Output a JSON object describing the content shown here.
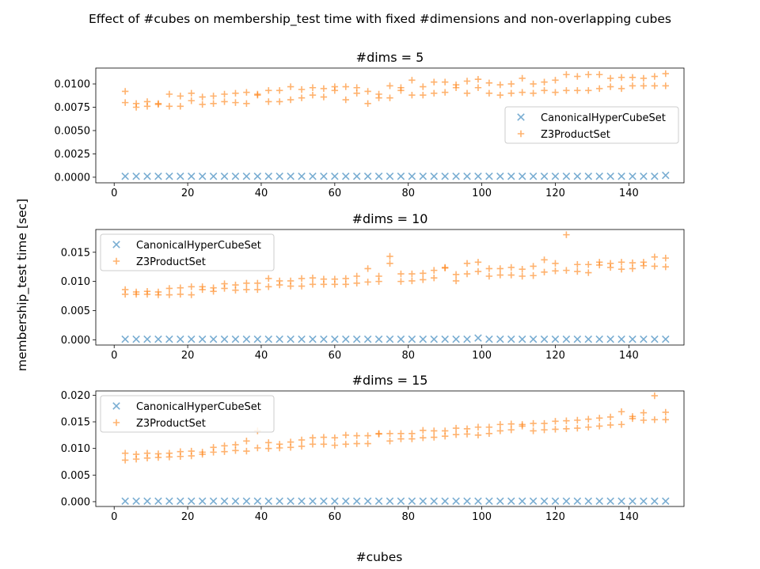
{
  "figure": {
    "suptitle": "Effect of #cubes on membership_test time with fixed #dimensions and non-overlapping cubes",
    "ylabel": "membership_test time [sec]",
    "xlabel": "#cubes"
  },
  "colors": {
    "canonical": "#1f77b4",
    "z3": "#ff7f0e"
  },
  "chart_data": [
    {
      "type": "scatter",
      "title": "#dims = 5",
      "xlim": [
        -5,
        155
      ],
      "ylim": [
        -0.0006,
        0.0117
      ],
      "xticks": [
        0,
        20,
        40,
        60,
        80,
        100,
        120,
        140
      ],
      "yticks": [
        0,
        0.0025,
        0.005,
        0.0075,
        0.01
      ],
      "ytick_labels": [
        "0.0000",
        "0.0025",
        "0.0050",
        "0.0075",
        "0.0100"
      ],
      "legend_position": "center-right",
      "x": [
        3,
        6,
        9,
        12,
        15,
        18,
        21,
        24,
        27,
        30,
        33,
        36,
        39,
        42,
        45,
        48,
        51,
        54,
        57,
        60,
        63,
        66,
        69,
        72,
        75,
        78,
        81,
        84,
        87,
        90,
        93,
        96,
        99,
        102,
        105,
        108,
        111,
        114,
        117,
        120,
        123,
        126,
        129,
        132,
        135,
        138,
        141,
        144,
        147,
        150
      ],
      "series": [
        {
          "name": "CanonicalHyperCubeSet",
          "marker": "x",
          "values": [
            0.0001,
            0.0001,
            0.0001,
            0.0001,
            0.0001,
            0.0001,
            0.0001,
            0.0001,
            0.0001,
            0.0001,
            0.0001,
            0.0001,
            0.0001,
            0.0001,
            0.0001,
            0.0001,
            0.0001,
            0.0001,
            0.0001,
            0.0001,
            0.0001,
            0.0001,
            0.0001,
            0.0001,
            0.0001,
            0.0001,
            0.0001,
            0.0001,
            0.0001,
            0.0001,
            0.0001,
            0.0001,
            0.0001,
            0.0001,
            0.0001,
            0.0001,
            0.0001,
            0.0001,
            0.0001,
            0.0001,
            0.0001,
            0.0001,
            0.0001,
            0.0001,
            0.0001,
            0.0001,
            0.0001,
            0.0001,
            0.0001,
            0.0002
          ]
        },
        {
          "name": "Z3ProductSet",
          "marker": "+",
          "values": [
            0.0092,
            0.0079,
            0.0081,
            0.0079,
            0.0089,
            0.0087,
            0.009,
            0.0086,
            0.0087,
            0.0089,
            0.009,
            0.0091,
            0.0088,
            0.0093,
            0.0093,
            0.0097,
            0.0094,
            0.0096,
            0.0095,
            0.0097,
            0.0097,
            0.0096,
            0.0092,
            0.0089,
            0.0098,
            0.0096,
            0.0104,
            0.0097,
            0.0102,
            0.0102,
            0.0099,
            0.0103,
            0.0105,
            0.0101,
            0.0099,
            0.01,
            0.0106,
            0.01,
            0.0102,
            0.0104,
            0.011,
            0.0108,
            0.011,
            0.011,
            0.0106,
            0.0107,
            0.0107,
            0.0106,
            0.0108,
            0.0111
          ]
        },
        {
          "name": "Z3ProductSet",
          "marker": "+",
          "values": [
            0.008,
            0.0075,
            0.0076,
            0.0078,
            0.0076,
            0.0076,
            0.0082,
            0.0078,
            0.0079,
            0.0081,
            0.008,
            0.0079,
            0.0089,
            0.0081,
            0.0081,
            0.0083,
            0.0085,
            0.0088,
            0.0086,
            0.0093,
            0.0083,
            0.009,
            0.0079,
            0.0085,
            0.0085,
            0.0093,
            0.0088,
            0.0088,
            0.009,
            0.0091,
            0.0096,
            0.009,
            0.0096,
            0.009,
            0.0088,
            0.009,
            0.0091,
            0.009,
            0.0093,
            0.0091,
            0.0093,
            0.0093,
            0.0093,
            0.0095,
            0.0097,
            0.0095,
            0.0098,
            0.0098,
            0.0098,
            0.0098
          ]
        }
      ]
    },
    {
      "type": "scatter",
      "title": "#dims = 10",
      "xlim": [
        -5,
        155
      ],
      "ylim": [
        -0.0009,
        0.0189
      ],
      "xticks": [
        0,
        20,
        40,
        60,
        80,
        100,
        120,
        140
      ],
      "yticks": [
        0,
        0.005,
        0.01,
        0.015
      ],
      "ytick_labels": [
        "0.000",
        "0.005",
        "0.010",
        "0.015"
      ],
      "legend_position": "upper-left",
      "x": [
        3,
        6,
        9,
        12,
        15,
        18,
        21,
        24,
        27,
        30,
        33,
        36,
        39,
        42,
        45,
        48,
        51,
        54,
        57,
        60,
        63,
        66,
        69,
        72,
        75,
        78,
        81,
        84,
        87,
        90,
        93,
        96,
        99,
        102,
        105,
        108,
        111,
        114,
        117,
        120,
        123,
        126,
        129,
        132,
        135,
        138,
        141,
        144,
        147,
        150
      ],
      "series": [
        {
          "name": "CanonicalHyperCubeSet",
          "marker": "x",
          "values": [
            0.0001,
            0.0001,
            0.0001,
            0.0001,
            0.0001,
            0.0001,
            0.0001,
            0.0001,
            0.0001,
            0.0001,
            0.0001,
            0.0001,
            0.0001,
            0.0001,
            0.0001,
            0.0001,
            0.0001,
            0.0001,
            0.0001,
            0.0001,
            0.0001,
            0.0001,
            0.0001,
            0.0001,
            0.0001,
            0.0001,
            0.0001,
            0.0001,
            0.0001,
            0.0001,
            0.0001,
            0.0001,
            0.0003,
            0.0001,
            0.0001,
            0.0001,
            0.0001,
            0.0001,
            0.0001,
            0.0001,
            0.0001,
            0.0001,
            0.0001,
            0.0001,
            0.0001,
            0.0001,
            0.0001,
            0.0001,
            0.0001,
            0.0001
          ]
        },
        {
          "name": "Z3ProductSet",
          "marker": "+",
          "values": [
            0.0086,
            0.0082,
            0.0083,
            0.0082,
            0.0088,
            0.0089,
            0.0091,
            0.0091,
            0.0089,
            0.0096,
            0.0094,
            0.0097,
            0.0097,
            0.0105,
            0.0101,
            0.0101,
            0.0105,
            0.0106,
            0.0104,
            0.0104,
            0.0105,
            0.0109,
            0.0122,
            0.0109,
            0.0143,
            0.0113,
            0.0113,
            0.0114,
            0.0119,
            0.0124,
            0.0112,
            0.0131,
            0.0133,
            0.0122,
            0.0122,
            0.0124,
            0.0121,
            0.0126,
            0.0137,
            0.0131,
            0.018,
            0.0129,
            0.0129,
            0.0133,
            0.0131,
            0.0133,
            0.0132,
            0.0133,
            0.0142,
            0.014
          ]
        },
        {
          "name": "Z3ProductSet",
          "marker": "+",
          "values": [
            0.0078,
            0.0078,
            0.0078,
            0.0077,
            0.0077,
            0.0078,
            0.0077,
            0.0086,
            0.0083,
            0.0088,
            0.0085,
            0.0086,
            0.0086,
            0.0091,
            0.0094,
            0.0092,
            0.0092,
            0.0095,
            0.0095,
            0.0095,
            0.0095,
            0.0097,
            0.0099,
            0.01,
            0.0131,
            0.01,
            0.0101,
            0.0103,
            0.0106,
            0.0123,
            0.0101,
            0.0113,
            0.0117,
            0.0109,
            0.0111,
            0.0111,
            0.0109,
            0.011,
            0.0116,
            0.0118,
            0.0119,
            0.0117,
            0.0115,
            0.0128,
            0.0124,
            0.0121,
            0.0122,
            0.0127,
            0.0126,
            0.0125
          ]
        }
      ]
    },
    {
      "type": "scatter",
      "title": "#dims = 15",
      "xlim": [
        -5,
        155
      ],
      "ylim": [
        -0.0009,
        0.0208
      ],
      "xticks": [
        0,
        20,
        40,
        60,
        80,
        100,
        120,
        140
      ],
      "yticks": [
        0,
        0.005,
        0.01,
        0.015,
        0.02
      ],
      "ytick_labels": [
        "0.000",
        "0.005",
        "0.010",
        "0.015",
        "0.020"
      ],
      "legend_position": "upper-left",
      "x": [
        3,
        6,
        9,
        12,
        15,
        18,
        21,
        24,
        27,
        30,
        33,
        36,
        39,
        42,
        45,
        48,
        51,
        54,
        57,
        60,
        63,
        66,
        69,
        72,
        75,
        78,
        81,
        84,
        87,
        90,
        93,
        96,
        99,
        102,
        105,
        108,
        111,
        114,
        117,
        120,
        123,
        126,
        129,
        132,
        135,
        138,
        141,
        144,
        147,
        150
      ],
      "series": [
        {
          "name": "CanonicalHyperCubeSet",
          "marker": "x",
          "values": [
            0.0001,
            0.0001,
            0.0001,
            0.0001,
            0.0001,
            0.0001,
            0.0001,
            0.0001,
            0.0001,
            0.0001,
            0.0001,
            0.0001,
            0.0001,
            0.0001,
            0.0001,
            0.0001,
            0.0001,
            0.0001,
            0.0001,
            0.0001,
            0.0001,
            0.0001,
            0.0001,
            0.0001,
            0.0001,
            0.0001,
            0.0001,
            0.0001,
            0.0001,
            0.0001,
            0.0001,
            0.0001,
            0.0001,
            0.0001,
            0.0001,
            0.0001,
            0.0001,
            0.0001,
            0.0001,
            0.0001,
            0.0001,
            0.0001,
            0.0001,
            0.0001,
            0.0001,
            0.0001,
            0.0001,
            0.0001,
            0.0001,
            0.0001
          ]
        },
        {
          "name": "Z3ProductSet",
          "marker": "+",
          "values": [
            0.0091,
            0.0089,
            0.0091,
            0.009,
            0.0091,
            0.0094,
            0.0095,
            0.0093,
            0.0102,
            0.0105,
            0.0107,
            0.0114,
            0.0133,
            0.0111,
            0.0108,
            0.0112,
            0.0116,
            0.012,
            0.0121,
            0.012,
            0.0125,
            0.0124,
            0.0124,
            0.0128,
            0.0128,
            0.0128,
            0.0128,
            0.0134,
            0.0133,
            0.0133,
            0.0138,
            0.0137,
            0.014,
            0.014,
            0.0145,
            0.0146,
            0.0145,
            0.0147,
            0.0147,
            0.0151,
            0.0152,
            0.0153,
            0.0155,
            0.0157,
            0.0159,
            0.0169,
            0.016,
            0.0167,
            0.0199,
            0.0168
          ]
        },
        {
          "name": "Z3ProductSet",
          "marker": "+",
          "values": [
            0.0078,
            0.008,
            0.0082,
            0.0083,
            0.0084,
            0.0085,
            0.0086,
            0.0089,
            0.0093,
            0.0094,
            0.0096,
            0.0095,
            0.0101,
            0.01,
            0.0101,
            0.0102,
            0.0104,
            0.0108,
            0.0108,
            0.0106,
            0.0108,
            0.0109,
            0.0109,
            0.0127,
            0.0114,
            0.0118,
            0.0118,
            0.012,
            0.0121,
            0.0123,
            0.0126,
            0.0127,
            0.0125,
            0.0128,
            0.0133,
            0.0135,
            0.0142,
            0.0133,
            0.0135,
            0.0136,
            0.0137,
            0.0138,
            0.014,
            0.0142,
            0.0144,
            0.0145,
            0.0156,
            0.0153,
            0.0154,
            0.0154
          ]
        }
      ]
    }
  ]
}
